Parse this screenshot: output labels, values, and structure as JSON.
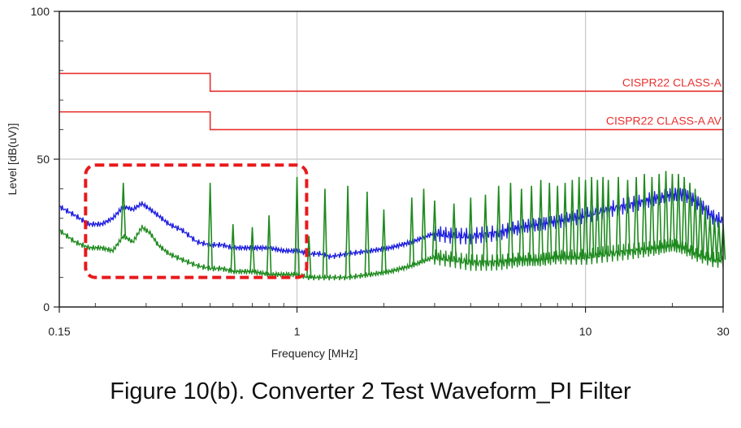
{
  "chart_data": {
    "type": "line",
    "title": "",
    "xlabel": "Frequency [MHz]",
    "ylabel": "Level [dB(uV)]",
    "xscale": "log",
    "xlim": [
      0.15,
      30
    ],
    "ylim": [
      0,
      100
    ],
    "x_ticks": [
      {
        "value": 0.15,
        "label": "0.15"
      },
      {
        "value": 1,
        "label": "1"
      },
      {
        "value": 10,
        "label": "10"
      },
      {
        "value": 30,
        "label": "30"
      }
    ],
    "y_ticks": [
      {
        "value": 0,
        "label": "0"
      },
      {
        "value": 50,
        "label": "50"
      },
      {
        "value": 100,
        "label": "100"
      }
    ],
    "grid": "vertical at 1 and 10 MHz, horizontal at 50",
    "limits": [
      {
        "name": "CISPR22 CLASS-A",
        "color": "#e8312f",
        "x": [
          0.15,
          0.5,
          0.5,
          30
        ],
        "y": [
          79,
          79,
          73,
          73
        ]
      },
      {
        "name": "CISPR22 CLASS-A AV",
        "color": "#e8312f",
        "x": [
          0.15,
          0.5,
          0.5,
          30
        ],
        "y": [
          66,
          66,
          60,
          60
        ]
      }
    ],
    "series": [
      {
        "color": "#1f1fe0",
        "x": [
          0.15,
          0.17,
          0.19,
          0.21,
          0.23,
          0.25,
          0.27,
          0.29,
          0.31,
          0.33,
          0.36,
          0.4,
          0.45,
          0.5,
          0.55,
          0.6,
          0.7,
          0.8,
          0.9,
          1.0,
          1.1,
          1.2,
          1.3,
          1.5,
          1.8,
          2.1,
          2.5,
          3.0,
          3.5,
          4,
          5,
          6,
          7,
          8,
          10,
          12,
          15,
          18,
          20,
          22,
          24,
          26,
          28,
          30
        ],
        "y": [
          34,
          31,
          28,
          28,
          30,
          34,
          33,
          35,
          33,
          31,
          28,
          26,
          22,
          21,
          21,
          20,
          20,
          20,
          19,
          19,
          18,
          18,
          17,
          18,
          19,
          20,
          22,
          25,
          24,
          24,
          25,
          27,
          28,
          29,
          31,
          33,
          35,
          37,
          38,
          38,
          36,
          33,
          30,
          29
        ]
      },
      {
        "color": "#1e8a1e",
        "x": [
          0.15,
          0.17,
          0.19,
          0.21,
          0.23,
          0.25,
          0.27,
          0.29,
          0.31,
          0.33,
          0.36,
          0.4,
          0.45,
          0.5,
          0.55,
          0.6,
          0.7,
          0.8,
          0.9,
          1.0,
          1.1,
          1.2,
          1.3,
          1.5,
          1.8,
          2.1,
          2.5,
          3.0,
          3.5,
          4,
          5,
          6,
          7,
          8,
          10,
          12,
          15,
          18,
          20,
          22,
          24,
          26,
          28,
          30
        ],
        "y": [
          26,
          22,
          20,
          20,
          19,
          24,
          22,
          27,
          25,
          21,
          18,
          16,
          14,
          13,
          13,
          12,
          12,
          11,
          11,
          11,
          10,
          10,
          10,
          10,
          11,
          12,
          14,
          17,
          16,
          15,
          15,
          16,
          16,
          17,
          17,
          18,
          19,
          20,
          21,
          20,
          18,
          17,
          16,
          16
        ]
      }
    ],
    "spikes": [
      {
        "x": 0.25,
        "y": 42
      },
      {
        "x": 0.5,
        "y": 42
      },
      {
        "x": 0.6,
        "y": 28
      },
      {
        "x": 0.7,
        "y": 27
      },
      {
        "x": 0.8,
        "y": 31
      },
      {
        "x": 1.0,
        "y": 44
      },
      {
        "x": 1.1,
        "y": 24
      },
      {
        "x": 1.25,
        "y": 40
      },
      {
        "x": 1.5,
        "y": 41
      },
      {
        "x": 1.75,
        "y": 39
      },
      {
        "x": 2.0,
        "y": 33
      },
      {
        "x": 2.5,
        "y": 37
      },
      {
        "x": 2.75,
        "y": 40
      },
      {
        "x": 3.0,
        "y": 36
      },
      {
        "x": 3.5,
        "y": 35
      },
      {
        "x": 4.0,
        "y": 37
      },
      {
        "x": 4.5,
        "y": 38
      },
      {
        "x": 5.0,
        "y": 41
      },
      {
        "x": 5.5,
        "y": 42
      },
      {
        "x": 6.0,
        "y": 40
      },
      {
        "x": 6.5,
        "y": 41
      },
      {
        "x": 7.0,
        "y": 43
      },
      {
        "x": 7.5,
        "y": 42
      },
      {
        "x": 8.0,
        "y": 41
      },
      {
        "x": 8.5,
        "y": 42
      },
      {
        "x": 9.0,
        "y": 43
      },
      {
        "x": 9.5,
        "y": 44
      },
      {
        "x": 10.0,
        "y": 43
      },
      {
        "x": 10.5,
        "y": 44
      },
      {
        "x": 11.0,
        "y": 43
      },
      {
        "x": 11.5,
        "y": 44
      },
      {
        "x": 12.0,
        "y": 43
      },
      {
        "x": 13.0,
        "y": 44
      },
      {
        "x": 14.0,
        "y": 43
      },
      {
        "x": 15.0,
        "y": 44
      },
      {
        "x": 16.0,
        "y": 45
      },
      {
        "x": 17.0,
        "y": 44
      },
      {
        "x": 18.0,
        "y": 45
      },
      {
        "x": 19.0,
        "y": 46
      },
      {
        "x": 20.0,
        "y": 45
      },
      {
        "x": 21.0,
        "y": 45
      },
      {
        "x": 22.0,
        "y": 44
      },
      {
        "x": 23.0,
        "y": 42
      },
      {
        "x": 24.0,
        "y": 40
      },
      {
        "x": 25.0,
        "y": 37
      },
      {
        "x": 26.0,
        "y": 34
      },
      {
        "x": 27.0,
        "y": 31
      },
      {
        "x": 28.0,
        "y": 30
      },
      {
        "x": 29.0,
        "y": 29
      },
      {
        "x": 30.0,
        "y": 28
      }
    ],
    "highlight_region": {
      "x": [
        0.185,
        1.08
      ],
      "y": [
        10,
        48
      ],
      "color": "#e8191c",
      "style": "dashed"
    }
  },
  "caption": "Figure 10(b). Converter 2 Test Waveform_PI Filter"
}
